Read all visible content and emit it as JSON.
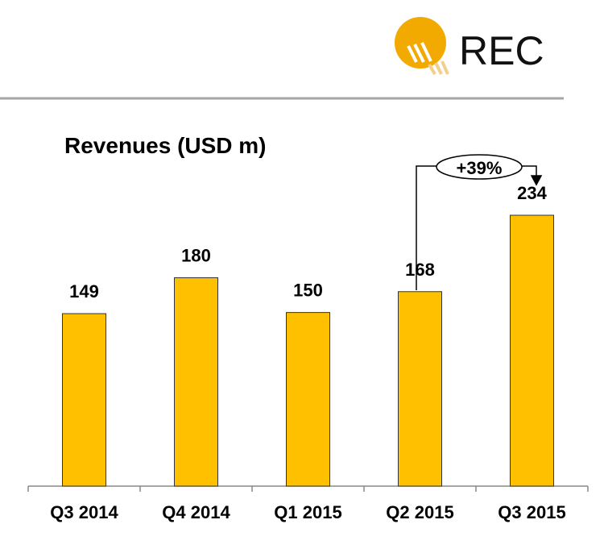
{
  "logo": {
    "text": "REC",
    "color": "#f2a900"
  },
  "chart_data": {
    "type": "bar",
    "title": "Revenues (USD m)",
    "categories": [
      "Q3 2014",
      "Q4 2014",
      "Q1 2015",
      "Q2 2015",
      "Q3 2015"
    ],
    "values": [
      149,
      180,
      150,
      168,
      234
    ],
    "data_labels": [
      "149",
      "180",
      "150",
      "168",
      "234"
    ],
    "bar_color": "#ffc000",
    "ylim": [
      0,
      420
    ],
    "grid": false,
    "annotation": {
      "text": "+39%",
      "from": "Q2 2015",
      "to": "Q3 2015"
    }
  }
}
